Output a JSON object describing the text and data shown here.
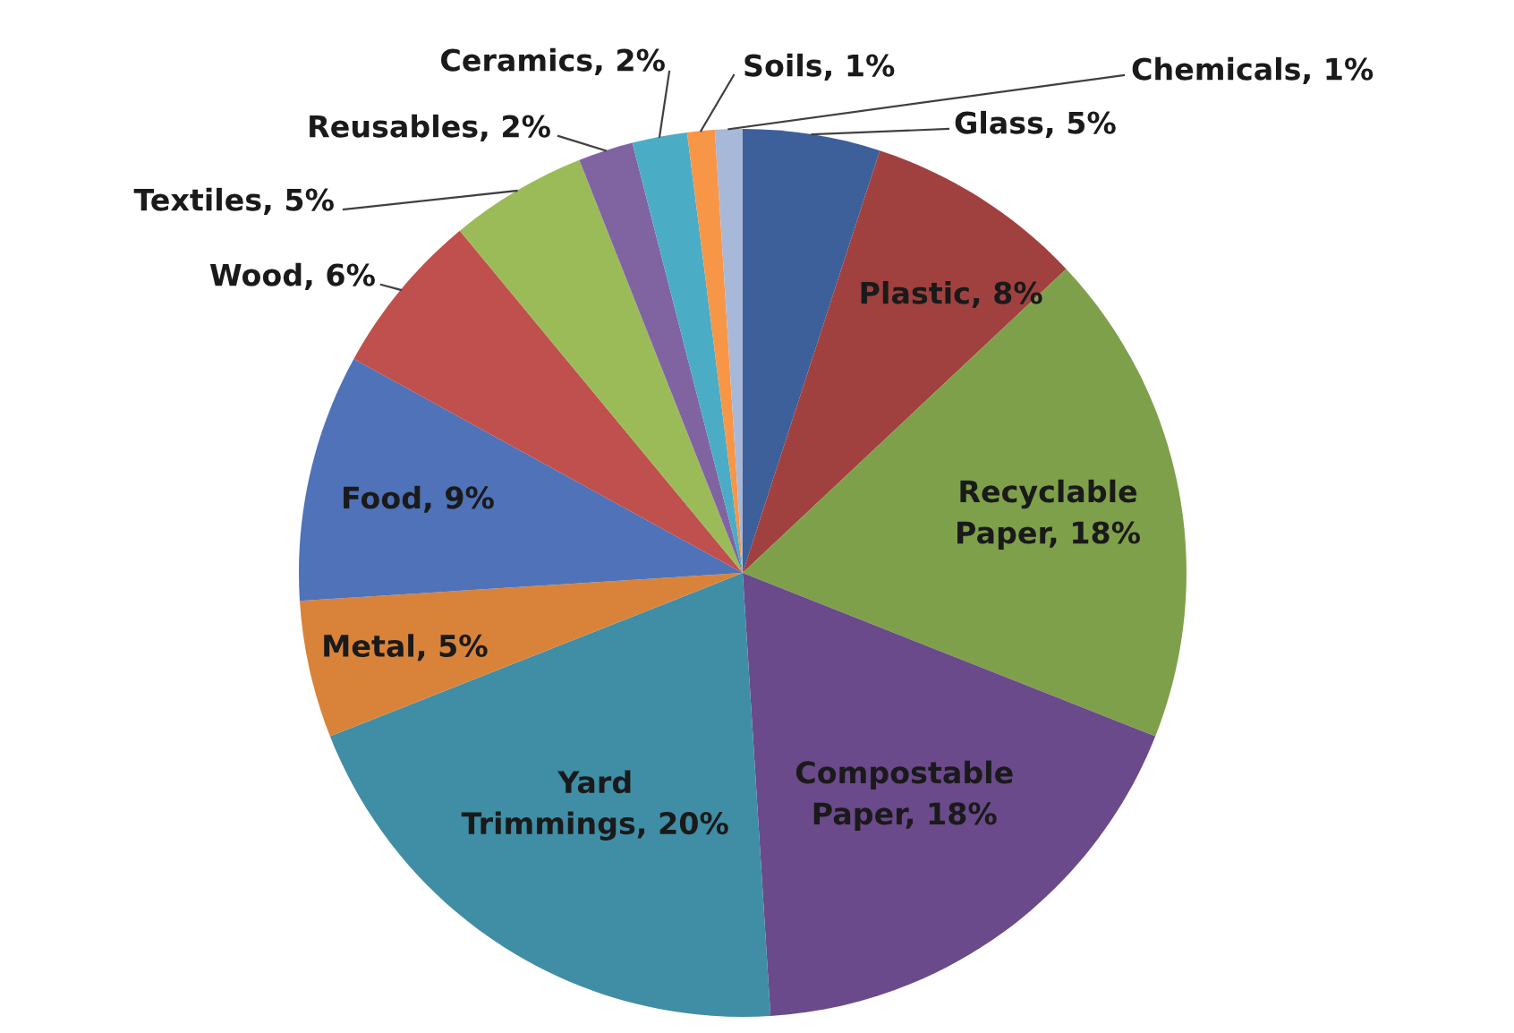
{
  "chart_data": {
    "type": "pie",
    "categories": [
      "Glass",
      "Plastic",
      "Recyclable Paper",
      "Compostable Paper",
      "Yard Trimmings",
      "Metal",
      "Food",
      "Wood",
      "Textiles",
      "Reusables",
      "Ceramics",
      "Soils",
      "Chemicals"
    ],
    "values": [
      5,
      8,
      18,
      18,
      20,
      5,
      9,
      6,
      5,
      2,
      2,
      1,
      1
    ],
    "colors": [
      "#3d5f9a",
      "#a0413f",
      "#7fa04a",
      "#6a4a8a",
      "#3f8ea5",
      "#d9833a",
      "#4f72b8",
      "#c0504d",
      "#9bbb59",
      "#8064a2",
      "#4bacc6",
      "#f79646",
      "#a8b8d8"
    ],
    "value_labels": [
      "5%",
      "8%",
      "18%",
      "18%",
      "20%",
      "5%",
      "9%",
      "6%",
      "5%",
      "2%",
      "2%",
      "1%",
      "1%"
    ],
    "legend": false
  }
}
